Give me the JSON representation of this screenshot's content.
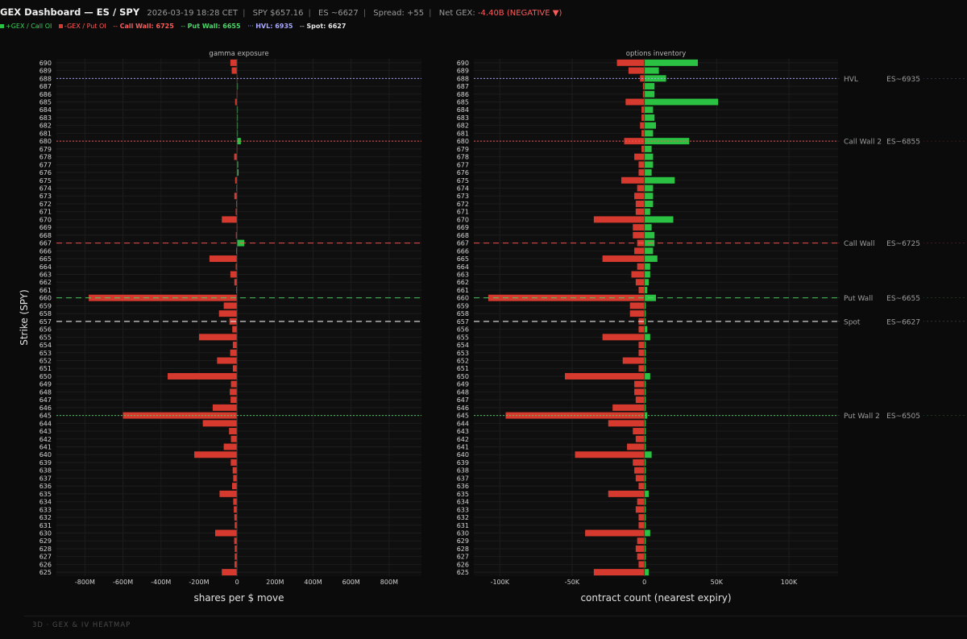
{
  "header": {
    "title": "GEX Dashboard — ES / SPY",
    "timestamp": "2026-03-19 18:28 CET",
    "spy": "SPY $657.16",
    "es": "ES ~6627",
    "spread": "Spread: +55",
    "net_gex_label": "Net GEX:",
    "net_gex_value": "-4.40B (NEGATIVE ▼)"
  },
  "legend": {
    "pos": "+GEX / Call OI",
    "neg": "-GEX / Put OI",
    "call_wall": "Call Wall: 6725",
    "put_wall": "Put Wall: 6655",
    "hvl": "HVL: 6935",
    "spot": "Spot: 6627"
  },
  "colors": {
    "pos": "#2bc244",
    "neg": "#d63a2e",
    "call_wall": "#ff5555",
    "put_wall": "#4fd46a",
    "hvl": "#a9a9ff",
    "spot": "#e6e6e6",
    "bg": "#0b0b0b"
  },
  "footer": "3D · GEX & IV HEATMAP",
  "chart_data": [
    {
      "type": "bar",
      "orientation": "horizontal",
      "title": "gamma exposure",
      "xlabel": "shares per $ move",
      "ylabel": "Strike (SPY)",
      "xlim": [
        -950,
        970
      ],
      "xticks": [
        -800,
        -600,
        -400,
        -200,
        0,
        200,
        400,
        600,
        800
      ],
      "xtick_labels": [
        "-800M",
        "-600M",
        "-400M",
        "-200M",
        "0",
        "200M",
        "400M",
        "600M",
        "800M"
      ],
      "strikes": [
        690,
        689,
        688,
        687,
        686,
        685,
        684,
        683,
        682,
        681,
        680,
        679,
        678,
        677,
        676,
        675,
        674,
        673,
        672,
        671,
        670,
        669,
        668,
        667,
        666,
        665,
        664,
        663,
        662,
        661,
        660,
        659,
        658,
        657,
        656,
        655,
        654,
        653,
        652,
        651,
        650,
        649,
        648,
        647,
        646,
        645,
        644,
        643,
        642,
        641,
        640,
        639,
        638,
        637,
        636,
        635,
        634,
        633,
        632,
        631,
        630,
        629,
        628,
        627,
        626,
        625
      ],
      "values": [
        -35,
        -28,
        -2,
        4,
        -2,
        -10,
        4,
        3,
        4,
        3,
        20,
        -2,
        -15,
        6,
        8,
        -10,
        -4,
        -14,
        -5,
        -7,
        -80,
        -2,
        -6,
        38,
        -5,
        -145,
        -7,
        -35,
        -14,
        -5,
        -780,
        -70,
        -95,
        -40,
        -25,
        -200,
        -22,
        -36,
        -105,
        -22,
        -365,
        -32,
        -38,
        -34,
        -128,
        -600,
        -180,
        -42,
        -32,
        -70,
        -225,
        -33,
        -23,
        -20,
        -26,
        -92,
        -20,
        -17,
        -14,
        -12,
        -115,
        -15,
        -12,
        -12,
        -13,
        -80
      ],
      "series": [
        {
          "name": "+GEX / Call OI"
        },
        {
          "name": "-GEX / Put OI"
        }
      ]
    },
    {
      "type": "bar",
      "orientation": "horizontal",
      "stacked": false,
      "title": "options inventory",
      "xlabel": "contract count (nearest expiry)",
      "xlim": [
        -118,
        134
      ],
      "xticks": [
        -100,
        -50,
        0,
        50,
        100
      ],
      "xtick_labels": [
        "-100K",
        "-50K",
        "0",
        "50K",
        "100K"
      ],
      "strikes": [
        690,
        689,
        688,
        687,
        686,
        685,
        684,
        683,
        682,
        681,
        680,
        679,
        678,
        677,
        676,
        675,
        674,
        673,
        672,
        671,
        670,
        669,
        668,
        667,
        666,
        665,
        664,
        663,
        662,
        661,
        660,
        659,
        658,
        657,
        656,
        655,
        654,
        653,
        652,
        651,
        650,
        649,
        648,
        647,
        646,
        645,
        644,
        643,
        642,
        641,
        640,
        639,
        638,
        637,
        636,
        635,
        634,
        633,
        632,
        631,
        630,
        629,
        628,
        627,
        626,
        625
      ],
      "series": [
        {
          "name": "Call OI",
          "values": [
            37,
            10,
            15,
            7,
            7,
            51,
            6,
            7,
            8,
            6,
            31,
            5,
            6,
            6,
            5,
            21,
            6,
            6,
            6,
            4,
            20,
            5,
            7,
            7,
            6,
            9,
            4,
            4,
            3,
            2,
            8,
            1,
            1,
            1,
            2,
            4,
            1,
            1,
            1,
            1,
            4,
            1,
            1,
            1,
            1,
            2,
            1,
            1,
            1,
            1,
            5,
            1,
            1,
            1,
            1,
            3,
            1,
            1,
            1,
            1,
            4,
            1,
            1,
            1,
            1,
            3
          ]
        },
        {
          "name": "Put OI",
          "values": [
            -19,
            -11,
            -3,
            -1,
            -1,
            -13,
            -2,
            -2,
            -3,
            -2,
            -14,
            -2,
            -7,
            -4,
            -4,
            -16,
            -5,
            -7,
            -6,
            -6,
            -35,
            -8,
            -8,
            -5,
            -7,
            -29,
            -5,
            -9,
            -6,
            -4,
            -108,
            -10,
            -10,
            -4,
            -4,
            -29,
            -4,
            -4,
            -15,
            -4,
            -55,
            -7,
            -7,
            -6,
            -22,
            -96,
            -25,
            -8,
            -6,
            -12,
            -48,
            -8,
            -7,
            -6,
            -4,
            -25,
            -5,
            -6,
            -4,
            -4,
            -41,
            -5,
            -6,
            -5,
            -4,
            -35
          ]
        }
      ]
    }
  ],
  "levels": [
    {
      "strike": 688,
      "kind": "hvl",
      "label": "HVL",
      "es": "ES~6935"
    },
    {
      "strike": 680,
      "kind": "call_wall_2",
      "label": "Call Wall 2",
      "es": "ES~6855"
    },
    {
      "strike": 667,
      "kind": "call_wall",
      "label": "Call Wall",
      "es": "ES~6725"
    },
    {
      "strike": 660,
      "kind": "put_wall",
      "label": "Put Wall",
      "es": "ES~6655"
    },
    {
      "strike": 657,
      "kind": "spot",
      "label": "Spot",
      "es": "ES~6627"
    },
    {
      "strike": 645,
      "kind": "put_wall_2",
      "label": "Put Wall 2",
      "es": "ES~6505"
    }
  ]
}
